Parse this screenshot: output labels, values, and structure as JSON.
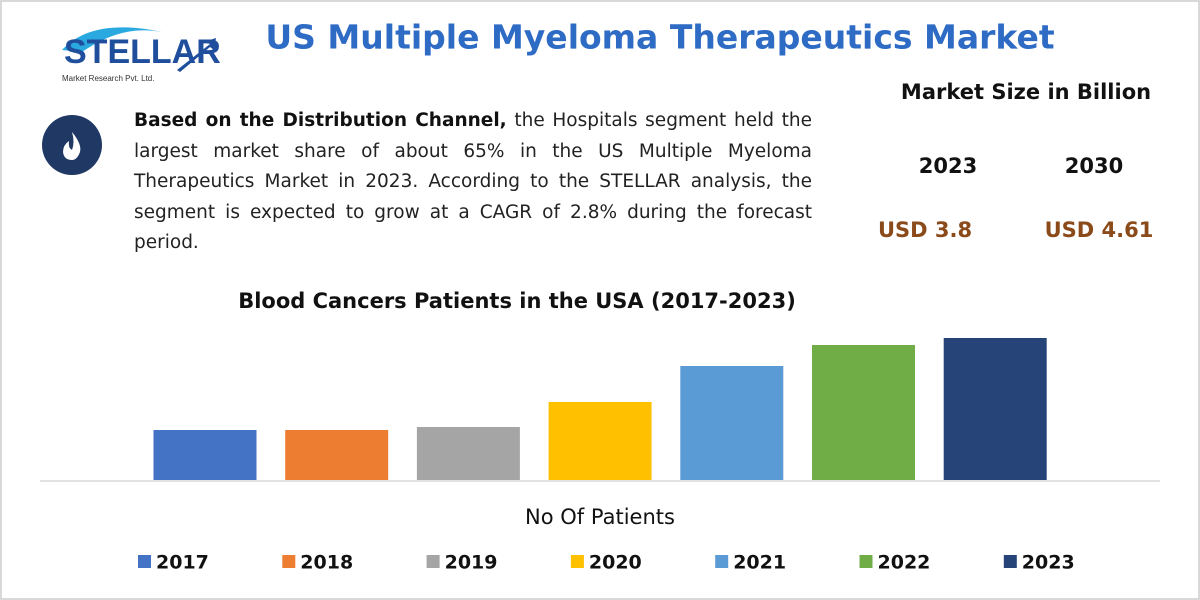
{
  "logo": {
    "name": "STELLAR",
    "tagline": "Market Research Pvt. Ltd."
  },
  "header": {
    "title": "US Multiple Myeloma Therapeutics Market"
  },
  "summary": {
    "lead": "Based on the Distribution Channel,",
    "text": " the Hospitals segment held the largest market share of about 65% in the US Multiple Myeloma Therapeutics Market in 2023.  According to the STELLAR analysis, the segment is expected to grow at a CAGR of 2.8% during the forecast period."
  },
  "market_size": {
    "title": "Market Size in Billion",
    "years": [
      "2023",
      "2030"
    ],
    "values": [
      "USD 3.8",
      "USD 4.61"
    ]
  },
  "chart_data": {
    "type": "bar",
    "title": "Blood Cancers Patients in the USA (2017-2023)",
    "x_label": "No Of Patients",
    "categories": [
      "2017",
      "2018",
      "2019",
      "2020",
      "2021",
      "2022",
      "2023"
    ],
    "values": [
      50,
      50,
      53,
      78,
      114,
      135,
      142
    ],
    "colors": [
      "#4472c4",
      "#ed7d31",
      "#a5a5a5",
      "#ffc000",
      "#5b9bd5",
      "#70ad47",
      "#264478"
    ]
  }
}
